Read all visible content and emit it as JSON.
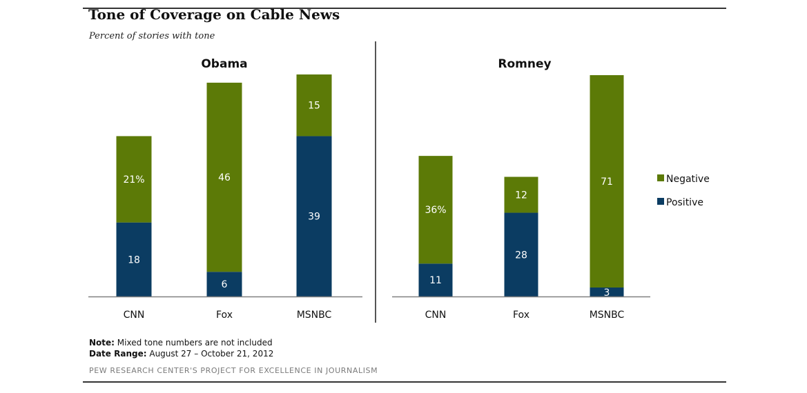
{
  "header": {
    "title": "Tone of Coverage on Cable News",
    "subtitle": "Percent of stories with tone"
  },
  "footer": {
    "note_label": "Note:",
    "note_text": "Mixed tone numbers are not included",
    "range_label": "Date Range:",
    "range_text": "August 27 – October 21, 2012",
    "source": "PEW RESEARCH CENTER'S PROJECT FOR EXCELLENCE IN JOURNALISM"
  },
  "colors": {
    "negative": "#5c7a07",
    "positive": "#0b3c62",
    "axis": "#808080",
    "divider": "#555555"
  },
  "chart_data": [
    {
      "type": "bar",
      "stacked": true,
      "title": "Obama",
      "categories": [
        "CNN",
        "Fox",
        "MSNBC"
      ],
      "series": [
        {
          "name": "Positive",
          "values": [
            18,
            6,
            39
          ],
          "labels": [
            "18",
            "6",
            "39"
          ]
        },
        {
          "name": "Negative",
          "values": [
            21,
            46,
            15
          ],
          "labels": [
            "21%",
            "46",
            "15"
          ]
        }
      ],
      "ylim": [
        0,
        54
      ],
      "grid": false,
      "legend": "right"
    },
    {
      "type": "bar",
      "stacked": true,
      "title": "Romney",
      "categories": [
        "CNN",
        "Fox",
        "MSNBC"
      ],
      "series": [
        {
          "name": "Positive",
          "values": [
            11,
            28,
            3
          ],
          "labels": [
            "11",
            "28",
            "3"
          ]
        },
        {
          "name": "Negative",
          "values": [
            36,
            12,
            71
          ],
          "labels": [
            "36%",
            "12",
            "71"
          ]
        }
      ],
      "ylim": [
        0,
        74
      ],
      "grid": false,
      "legend": "right"
    }
  ],
  "legend": [
    {
      "name": "Negative"
    },
    {
      "name": "Positive"
    }
  ]
}
